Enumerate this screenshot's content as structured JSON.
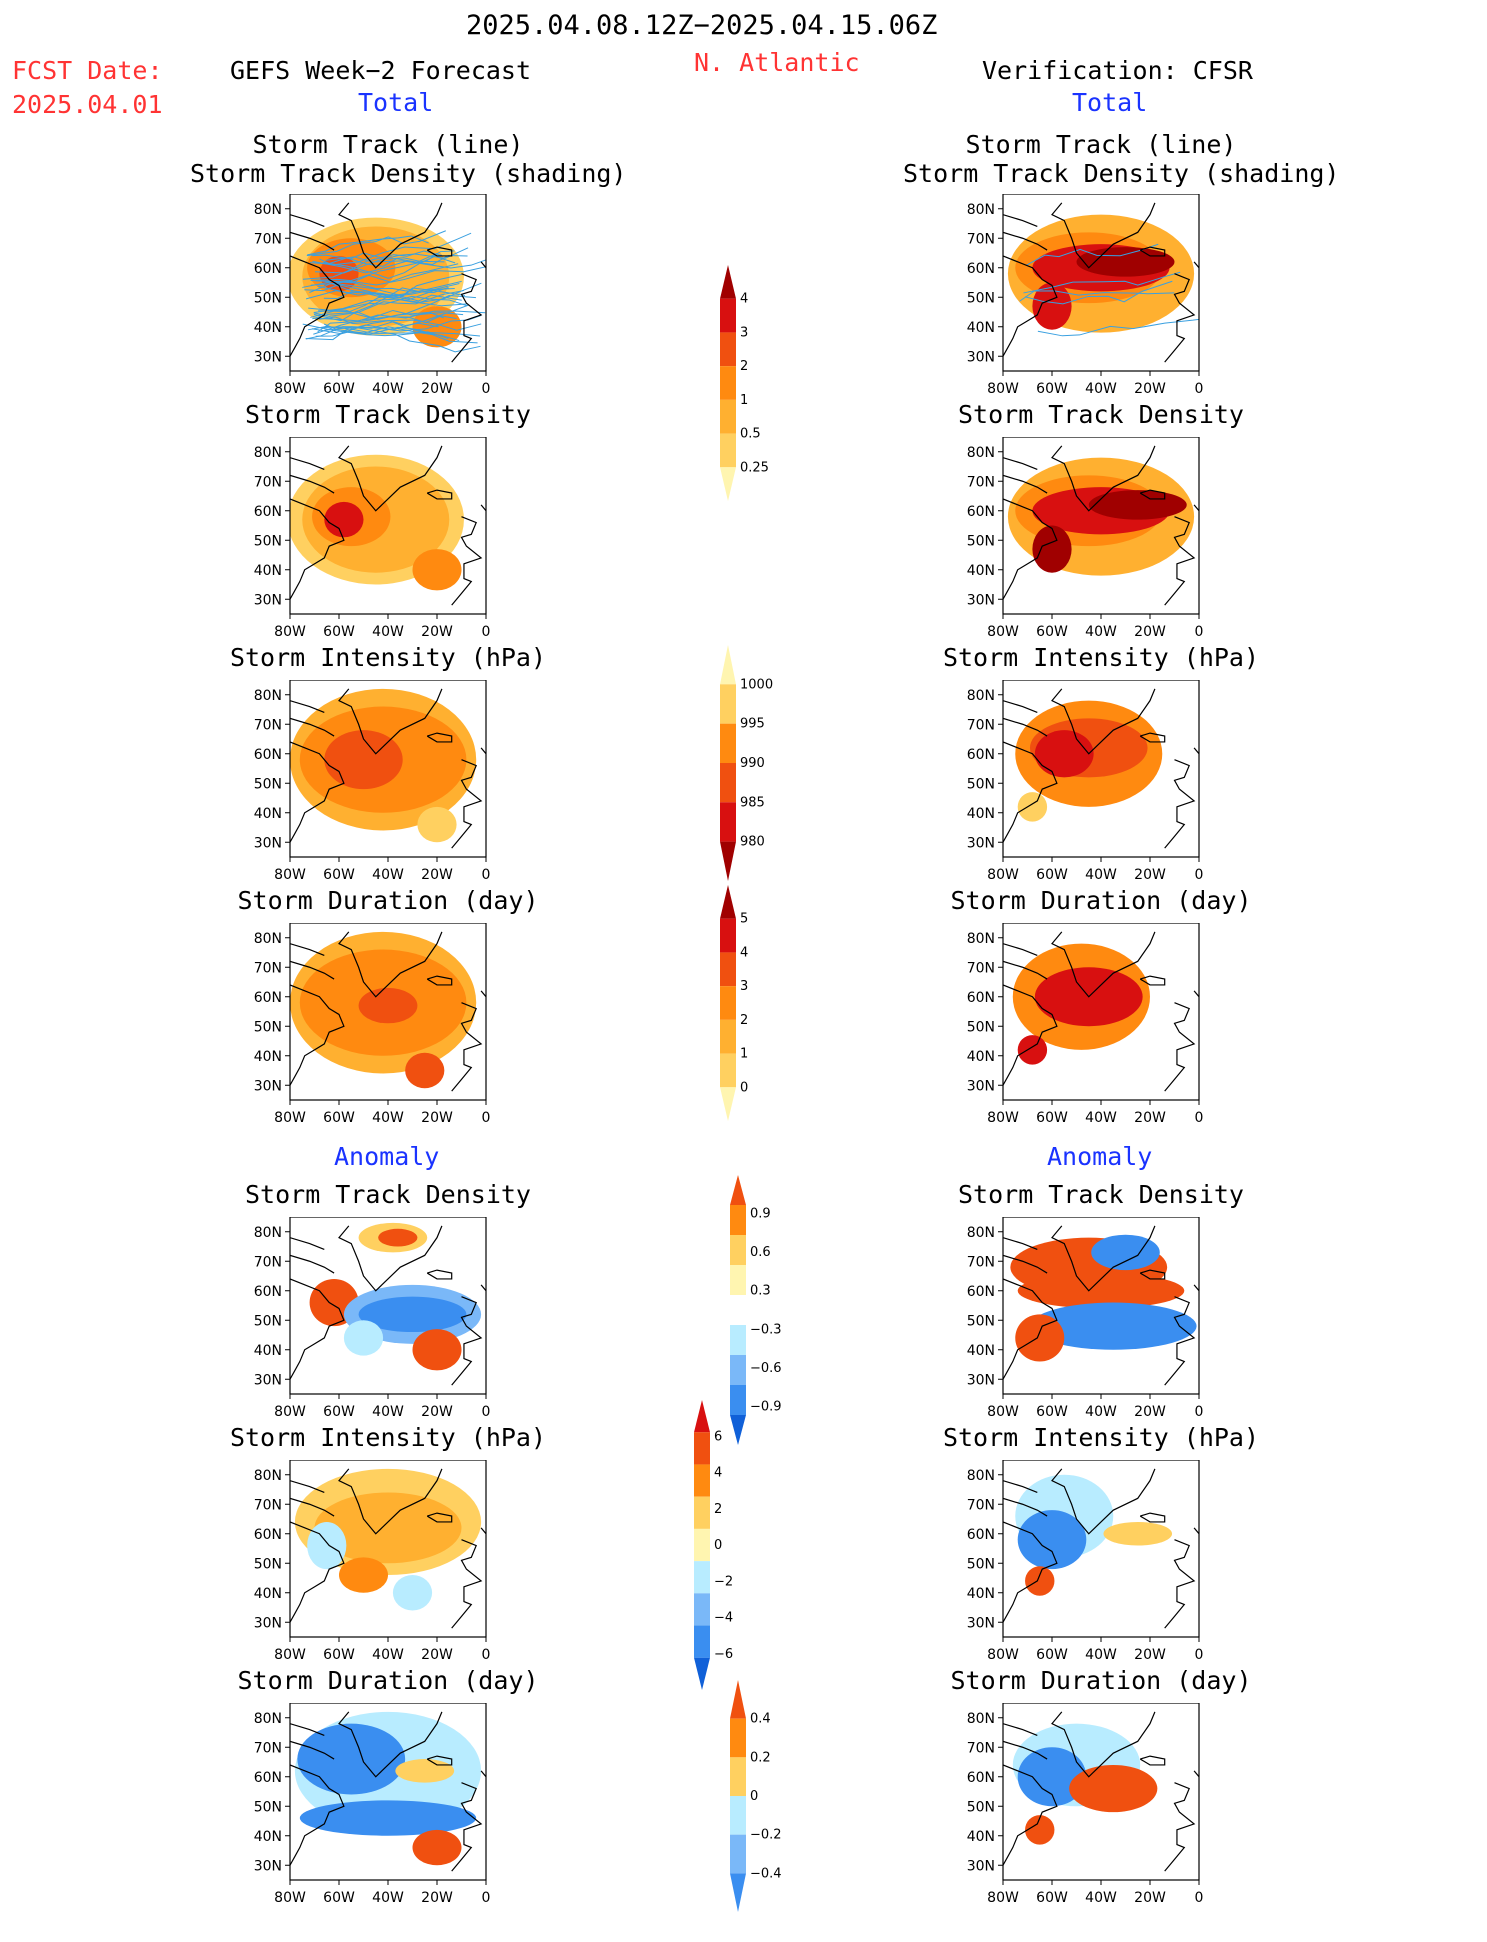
{
  "header": {
    "date_range": "2025.04.08.12Z−2025.04.15.06Z",
    "fcst_label": "FCST Date:",
    "fcst_date": "2025.04.01",
    "region": "N. Atlantic",
    "left_title": "GEFS Week−2 Forecast",
    "right_title": "Verification: CFSR",
    "total_left": "Total",
    "total_right": "Total",
    "anomaly_left": "Anomaly",
    "anomaly_right": "Anomaly"
  },
  "axes": {
    "lat_ticks": [
      "80N",
      "70N",
      "60N",
      "50N",
      "40N",
      "30N"
    ],
    "lon_ticks": [
      "80W",
      "60W",
      "40W",
      "20W",
      "0"
    ]
  },
  "colors": {
    "yellow_light": "#fff5b0",
    "yellow": "#ffd060",
    "orange_light": "#ffb030",
    "orange": "#ff8a10",
    "red_orange": "#f05010",
    "red": "#d81010",
    "dark_red": "#a00000",
    "blue_light": "#b8ecff",
    "blue": "#7ab8f8",
    "blue_mid": "#3a8ef0",
    "blue_dark": "#1060d8",
    "track_line": "#3aa0e0"
  },
  "chart_data": [
    {
      "type": "heatmap",
      "id": "fc-track",
      "title": "Storm Track (line)\nStorm Track Density (shading)",
      "title_lines": [
        "Storm Track (line)",
        "Storm Track Density (shading)"
      ]
    },
    {
      "type": "heatmap",
      "id": "ob-track",
      "title_lines": [
        "Storm Track (line)",
        "Storm Track Density (shading)"
      ]
    },
    {
      "type": "heatmap",
      "id": "fc-density",
      "title_lines": [
        "Storm Track Density"
      ]
    },
    {
      "type": "heatmap",
      "id": "ob-density",
      "title_lines": [
        "Storm Track Density"
      ]
    },
    {
      "type": "heatmap",
      "id": "fc-intensity",
      "title_lines": [
        "Storm Intensity (hPa)"
      ]
    },
    {
      "type": "heatmap",
      "id": "ob-intensity",
      "title_lines": [
        "Storm Intensity (hPa)"
      ]
    },
    {
      "type": "heatmap",
      "id": "fc-duration",
      "title_lines": [
        "Storm Duration (day)"
      ]
    },
    {
      "type": "heatmap",
      "id": "ob-duration",
      "title_lines": [
        "Storm Duration (day)"
      ]
    },
    {
      "type": "heatmap",
      "id": "fc-density-anom",
      "title_lines": [
        "Storm Track Density"
      ]
    },
    {
      "type": "heatmap",
      "id": "ob-density-anom",
      "title_lines": [
        "Storm Track Density"
      ]
    },
    {
      "type": "heatmap",
      "id": "fc-intensity-anom",
      "title_lines": [
        "Storm Intensity (hPa)"
      ]
    },
    {
      "type": "heatmap",
      "id": "ob-intensity-anom",
      "title_lines": [
        "Storm Intensity (hPa)"
      ]
    },
    {
      "type": "heatmap",
      "id": "fc-duration-anom",
      "title_lines": [
        "Storm Duration (day)"
      ]
    },
    {
      "type": "heatmap",
      "id": "ob-duration-anom",
      "title_lines": [
        "Storm Duration (day)"
      ]
    }
  ],
  "colorbars": [
    {
      "id": "cb-density",
      "labels": [
        "4",
        "3",
        "2",
        "1",
        "0.5",
        "0.25"
      ],
      "colors": [
        "#a00000",
        "#d81010",
        "#f05010",
        "#ff8a10",
        "#ffb030",
        "#ffd060",
        "#fff5b0"
      ]
    },
    {
      "id": "cb-intensity",
      "labels": [
        "1000",
        "995",
        "990",
        "985",
        "980"
      ],
      "colors": [
        "#fff5b0",
        "#ffd060",
        "#ff8a10",
        "#f05010",
        "#d81010",
        "#a00000"
      ]
    },
    {
      "id": "cb-duration",
      "labels": [
        "5",
        "4",
        "3",
        "2",
        "1",
        "0"
      ],
      "colors": [
        "#a00000",
        "#d81010",
        "#f05010",
        "#ff8a10",
        "#ffb030",
        "#ffd060",
        "#fff5b0"
      ]
    },
    {
      "id": "cb-density-anom",
      "labels": [
        "0.9",
        "0.6",
        "0.3",
        "−0.3",
        "−0.6",
        "−0.9"
      ],
      "colors": [
        "#f05010",
        "#ff8a10",
        "#ffd060",
        "#fff5b0",
        "#ffffff",
        "#b8ecff",
        "#7ab8f8",
        "#3a8ef0",
        "#1060d8"
      ]
    },
    {
      "id": "cb-intensity-anom",
      "labels": [
        "6",
        "4",
        "2",
        "0",
        "−2",
        "−4",
        "−6"
      ],
      "colors": [
        "#d81010",
        "#f05010",
        "#ff8a10",
        "#ffd060",
        "#fff5b0",
        "#b8ecff",
        "#7ab8f8",
        "#3a8ef0",
        "#1060d8"
      ]
    },
    {
      "id": "cb-duration-anom",
      "labels": [
        "0.4",
        "0.2",
        "0",
        "−0.2",
        "−0.4"
      ],
      "colors": [
        "#f05010",
        "#ff8a10",
        "#ffd060",
        "#b8ecff",
        "#7ab8f8",
        "#3a8ef0"
      ]
    }
  ]
}
